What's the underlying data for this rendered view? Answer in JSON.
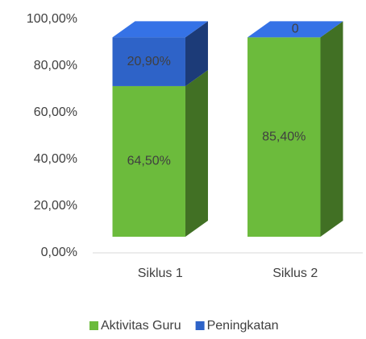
{
  "chart_data": {
    "type": "stacked_bar_3d",
    "categories": [
      "Siklus 1",
      "Siklus 2"
    ],
    "series": [
      {
        "name": "Aktivitas Guru",
        "color": "#6cbb3c",
        "values": [
          64.5,
          85.4
        ],
        "value_labels": [
          "64,50%",
          "85,40%"
        ]
      },
      {
        "name": "Peningkatan",
        "color": "#2e63c8",
        "values": [
          20.9,
          0
        ],
        "value_labels": [
          "20,90%",
          "0"
        ]
      }
    ],
    "ylim": [
      0,
      100
    ],
    "yticks": [
      {
        "value": 0,
        "label": "0,00%"
      },
      {
        "value": 20,
        "label": "20,00%"
      },
      {
        "value": 40,
        "label": "40,00%"
      },
      {
        "value": 60,
        "label": "60,00%"
      },
      {
        "value": 80,
        "label": "80,00%"
      },
      {
        "value": 100,
        "label": "100,00%"
      }
    ],
    "legend": "bottom"
  }
}
